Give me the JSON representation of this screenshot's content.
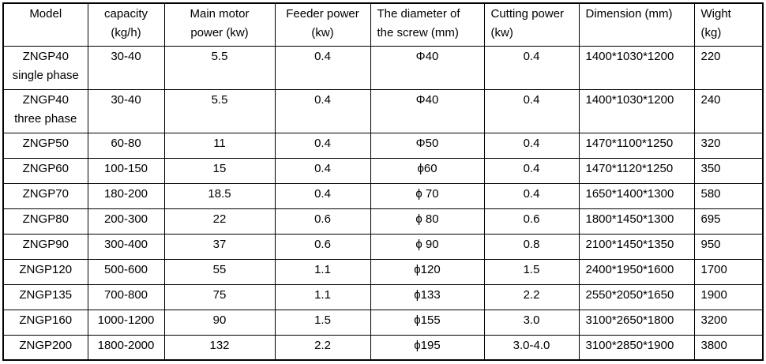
{
  "page": {
    "background": "#ffffff",
    "border_color": "#000000",
    "text_color": "#000000"
  },
  "table": {
    "column_ids": [
      "model",
      "capacity",
      "main_motor",
      "feeder",
      "diameter",
      "cutting",
      "dimension",
      "wight"
    ],
    "headers": {
      "model": {
        "line1": "Model",
        "line2": ""
      },
      "capacity": {
        "line1": "capacity",
        "line2": "(kg/h)"
      },
      "main_motor": {
        "line1": "Main motor",
        "line2": "power (kw)"
      },
      "feeder": {
        "line1": "Feeder power",
        "line2": "(kw)"
      },
      "diameter": {
        "line1": "The diameter of",
        "line2": "the screw (mm)"
      },
      "cutting": {
        "line1": "Cutting power",
        "line2": "(kw)"
      },
      "dimension": {
        "line1": "Dimension (mm)",
        "line2": ""
      },
      "wight": {
        "line1": "Wight",
        "line2": "(kg)"
      }
    },
    "rows": [
      {
        "model_lines": [
          "ZNGP40",
          "single phase"
        ],
        "capacity": "30-40",
        "main_motor": "5.5",
        "feeder": "0.4",
        "diameter": "Φ40",
        "cutting": "0.4",
        "dimension": "1400*1030*1200",
        "wight": "220"
      },
      {
        "model_lines": [
          "ZNGP40",
          "three phase"
        ],
        "capacity": "30-40",
        "main_motor": "5.5",
        "feeder": "0.4",
        "diameter": "Φ40",
        "cutting": "0.4",
        "dimension": "1400*1030*1200",
        "wight": "240"
      },
      {
        "model_lines": [
          "ZNGP50"
        ],
        "capacity": "60-80",
        "main_motor": "11",
        "feeder": "0.4",
        "diameter": "Φ50",
        "cutting": "0.4",
        "dimension": "1470*1100*1250",
        "wight": "320"
      },
      {
        "model_lines": [
          "ZNGP60"
        ],
        "capacity": "100-150",
        "main_motor": "15",
        "feeder": "0.4",
        "diameter": "ϕ60",
        "cutting": "0.4",
        "dimension": "1470*1120*1250",
        "wight": "350"
      },
      {
        "model_lines": [
          "ZNGP70"
        ],
        "capacity": "180-200",
        "main_motor": "18.5",
        "feeder": "0.4",
        "diameter": "ϕ 70",
        "cutting": "0.4",
        "dimension": "1650*1400*1300",
        "wight": "580"
      },
      {
        "model_lines": [
          "ZNGP80"
        ],
        "capacity": "200-300",
        "main_motor": "22",
        "feeder": "0.6",
        "diameter": "ϕ 80",
        "cutting": "0.6",
        "dimension": "1800*1450*1300",
        "wight": "695"
      },
      {
        "model_lines": [
          "ZNGP90"
        ],
        "capacity": "300-400",
        "main_motor": "37",
        "feeder": "0.6",
        "diameter": "ϕ 90",
        "cutting": "0.8",
        "dimension": "2100*1450*1350",
        "wight": "950"
      },
      {
        "model_lines": [
          "ZNGP120"
        ],
        "capacity": "500-600",
        "main_motor": "55",
        "feeder": "1.1",
        "diameter": "ϕ120",
        "cutting": "1.5",
        "dimension": "2400*1950*1600",
        "wight": "1700"
      },
      {
        "model_lines": [
          "ZNGP135"
        ],
        "capacity": "700-800",
        "main_motor": "75",
        "feeder": "1.1",
        "diameter": "ϕ133",
        "cutting": "2.2",
        "dimension": "2550*2050*1650",
        "wight": "1900"
      },
      {
        "model_lines": [
          "ZNGP160"
        ],
        "capacity": "1000-1200",
        "main_motor": "90",
        "feeder": "1.5",
        "diameter": "ϕ155",
        "cutting": "3.0",
        "dimension": "3100*2650*1800",
        "wight": "3200"
      },
      {
        "model_lines": [
          "ZNGP200"
        ],
        "capacity": "1800-2000",
        "main_motor": "132",
        "feeder": "2.2",
        "diameter": "ϕ195",
        "cutting": "3.0-4.0",
        "dimension": "3100*2850*1900",
        "wight": "3800"
      }
    ]
  }
}
